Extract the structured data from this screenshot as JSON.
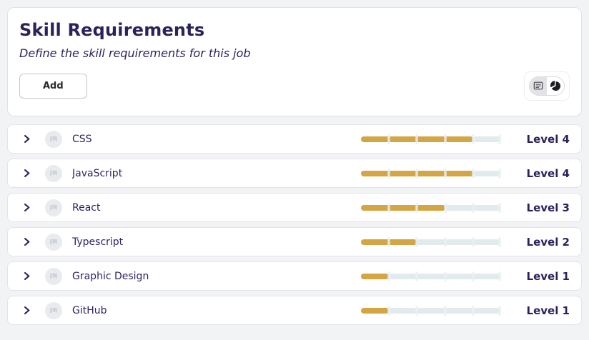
{
  "header": {
    "title": "Skill Requirements",
    "subtitle": "Define the skill requirements for this job",
    "add_label": "Add"
  },
  "view_toggle": {
    "options": [
      {
        "name": "table-view",
        "icon": "card-list-icon",
        "selected": true
      },
      {
        "name": "chart-view",
        "icon": "pie-chart-icon",
        "selected": false
      }
    ]
  },
  "colors": {
    "accent_gold": "#d4a544",
    "bar_track": "#e1ebed",
    "navy_text": "#29235c",
    "page_bg": "#f2f3f5"
  },
  "levels": {
    "max": 5
  },
  "skills": [
    {
      "name": "CSS",
      "level": 4,
      "level_label": "Level 4"
    },
    {
      "name": "JavaScript",
      "level": 4,
      "level_label": "Level 4"
    },
    {
      "name": "React",
      "level": 3,
      "level_label": "Level 3"
    },
    {
      "name": "Typescript",
      "level": 2,
      "level_label": "Level 2"
    },
    {
      "name": "Graphic Design",
      "level": 1,
      "level_label": "Level 1"
    },
    {
      "name": "GitHub",
      "level": 1,
      "level_label": "Level 1"
    }
  ]
}
